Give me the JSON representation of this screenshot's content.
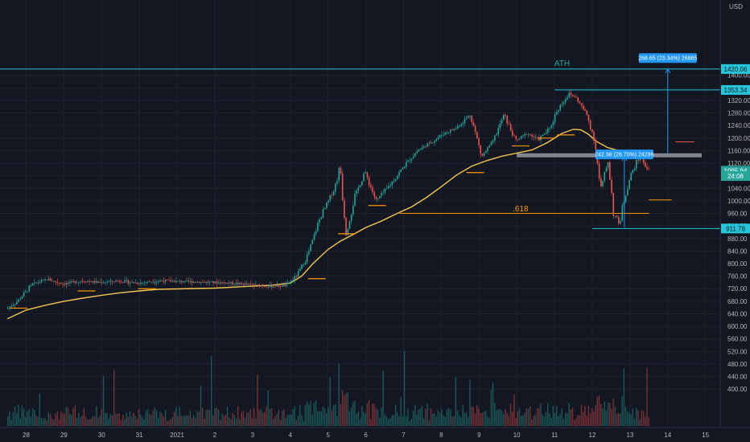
{
  "chart_data": {
    "type": "candlestick",
    "currency_label": "USD",
    "y_ticks": [
      400,
      440,
      480,
      520,
      560,
      600,
      640,
      680,
      720,
      760,
      800,
      840,
      880,
      920,
      960,
      1000,
      1040,
      1080,
      1120,
      1160,
      1200,
      1240,
      1280,
      1320,
      1360,
      1400
    ],
    "x_ticks": [
      "28",
      "29",
      "30",
      "31",
      "2021",
      "2",
      "3",
      "4",
      "5",
      "6",
      "7",
      "8",
      "9",
      "10",
      "11",
      "12",
      "13",
      "14",
      "15"
    ],
    "moving_average": [
      [
        27.5,
        624
      ],
      [
        28.0,
        652
      ],
      [
        28.5,
        667
      ],
      [
        29.0,
        680
      ],
      [
        29.5,
        690
      ],
      [
        30.0,
        699
      ],
      [
        30.5,
        707
      ],
      [
        31.0,
        713
      ],
      [
        31.5,
        718
      ],
      [
        1.0,
        722
      ],
      [
        1.5,
        725
      ],
      [
        2.0,
        728
      ],
      [
        2.5,
        731
      ],
      [
        3.0,
        738
      ],
      [
        3.3,
        760
      ],
      [
        3.6,
        800
      ],
      [
        4.0,
        845
      ],
      [
        4.3,
        870
      ],
      [
        4.7,
        895
      ],
      [
        5.0,
        915
      ],
      [
        5.4,
        935
      ],
      [
        5.8,
        958
      ],
      [
        6.2,
        980
      ],
      [
        6.6,
        1010
      ],
      [
        7.0,
        1045
      ],
      [
        7.4,
        1082
      ],
      [
        7.8,
        1110
      ],
      [
        8.2,
        1128
      ],
      [
        8.6,
        1142
      ],
      [
        9.0,
        1152
      ],
      [
        9.4,
        1162
      ],
      [
        9.8,
        1185
      ],
      [
        10.2,
        1215
      ],
      [
        10.5,
        1228
      ],
      [
        10.7,
        1226
      ],
      [
        10.9,
        1212
      ],
      [
        11.1,
        1190
      ],
      [
        11.4,
        1170
      ],
      [
        11.7,
        1160
      ],
      [
        12.0,
        1155
      ],
      [
        12.3,
        1145
      ]
    ],
    "price_segments": [
      [
        27.5,
        655
      ],
      [
        27.8,
        680
      ],
      [
        28.2,
        735
      ],
      [
        28.6,
        750
      ],
      [
        29.0,
        735
      ],
      [
        29.5,
        745
      ],
      [
        30.0,
        740
      ],
      [
        30.5,
        745
      ],
      [
        31.0,
        738
      ],
      [
        31.5,
        745
      ],
      [
        1.0,
        740
      ],
      [
        1.5,
        738
      ],
      [
        2.0,
        732
      ],
      [
        2.5,
        728
      ],
      [
        2.9,
        730
      ],
      [
        3.2,
        760
      ],
      [
        3.5,
        830
      ],
      [
        3.8,
        940
      ],
      [
        4.2,
        1040
      ],
      [
        4.35,
        1110
      ],
      [
        4.5,
        905
      ],
      [
        4.7,
        1000
      ],
      [
        5.0,
        1095
      ],
      [
        5.3,
        1000
      ],
      [
        5.7,
        1055
      ],
      [
        6.1,
        1120
      ],
      [
        6.4,
        1160
      ],
      [
        6.8,
        1190
      ],
      [
        7.1,
        1215
      ],
      [
        7.4,
        1230
      ],
      [
        7.8,
        1275
      ],
      [
        8.1,
        1140
      ],
      [
        8.4,
        1190
      ],
      [
        8.7,
        1275
      ],
      [
        9.0,
        1190
      ],
      [
        9.3,
        1215
      ],
      [
        9.6,
        1195
      ],
      [
        9.9,
        1230
      ],
      [
        10.1,
        1290
      ],
      [
        10.4,
        1340
      ],
      [
        10.6,
        1330
      ],
      [
        10.9,
        1270
      ],
      [
        11.1,
        1190
      ],
      [
        11.25,
        1030
      ],
      [
        11.45,
        1130
      ],
      [
        11.6,
        960
      ],
      [
        11.75,
        925
      ],
      [
        11.95,
        1050
      ],
      [
        12.15,
        1110
      ],
      [
        12.3,
        1140
      ],
      [
        12.5,
        1100
      ]
    ],
    "horizontal_levels": [
      {
        "price": 1420.06,
        "x_start": 27.0,
        "x_end": 15.4,
        "color": "#26c6da"
      },
      {
        "price": 1353.34,
        "x_start": 10.0,
        "x_end": 15.4,
        "color": "#26c6da"
      },
      {
        "price": 911.78,
        "x_start": 11.0,
        "x_end": 15.4,
        "color": "#26c6da"
      },
      {
        "price": 1145,
        "x_start": 9.0,
        "x_end": 13.9,
        "color": "#b2b5be",
        "thick": true
      },
      {
        "price": 960,
        "x_start": 5.9,
        "x_end": 12.5,
        "color": "#ff9800",
        "label": ".618"
      },
      {
        "price": 1188,
        "x_start": 13.2,
        "x_end": 13.7,
        "color": "#ef5350"
      },
      {
        "price": 1003,
        "x_start": 12.5,
        "x_end": 13.1,
        "color": "#ff9800"
      }
    ],
    "support_ticks": [
      [
        27.8,
        658
      ],
      [
        29.6,
        713
      ],
      [
        31.2,
        720
      ],
      [
        3.7,
        752
      ],
      [
        4.5,
        895
      ],
      [
        5.3,
        985
      ],
      [
        7.9,
        1090
      ],
      [
        9.1,
        1175
      ],
      [
        9.8,
        1200
      ],
      [
        10.3,
        1210
      ]
    ],
    "price_tags": [
      {
        "text": "1420.06",
        "price": 1420.06,
        "bg": "#26c6da",
        "fg": "#131722"
      },
      {
        "text": "1353.34",
        "price": 1353.34,
        "bg": "#26c6da",
        "fg": "#131722"
      },
      {
        "text": "1095.94",
        "price": 1095.94,
        "bg": "#26a69a",
        "fg": "#ffffff"
      },
      {
        "text": "24:08",
        "price": 1079,
        "bg": "#26a69a",
        "fg": "#ffffff"
      },
      {
        "text": "911.78",
        "price": 911.78,
        "bg": "#26c6da",
        "fg": "#131722"
      }
    ],
    "annotations": [
      {
        "text": "ATH",
        "x": 10.2,
        "price": 1430,
        "color": "#26a69a"
      },
      {
        "text": ".618",
        "x": 9.1,
        "price": 966,
        "color": "#ff9800"
      }
    ],
    "measure_boxes": [
      {
        "text": "268.65 (23.34%) 26865",
        "x": 13.0,
        "price": 1455,
        "arrow_from": 1150,
        "arrow_to": 1420
      },
      {
        "text": "242.96 (26.70%) 24296",
        "x": 11.85,
        "price": 1148,
        "arrow_from": 915,
        "arrow_to": 1140
      }
    ]
  }
}
